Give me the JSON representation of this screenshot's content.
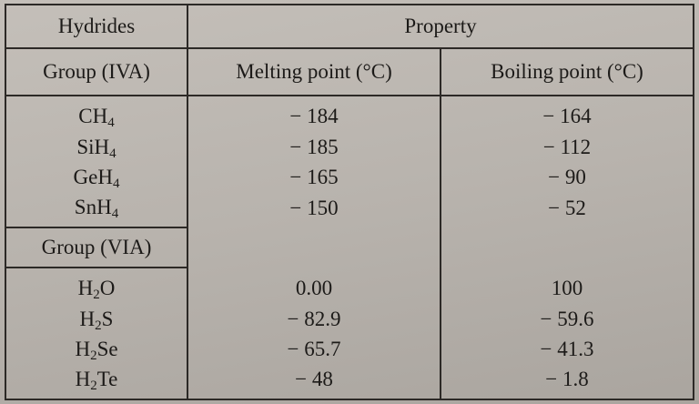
{
  "table": {
    "header": {
      "col1": "Hydrides",
      "property": "Property"
    },
    "subheader": {
      "group1": "Group (IVA)",
      "melting": "Melting point (°C)",
      "boiling": "Boiling point (°C)"
    },
    "group1_rows": [
      {
        "base": "CH",
        "sub": "4",
        "melting": "− 184",
        "boiling": "− 164"
      },
      {
        "base": "SiH",
        "sub": "4",
        "melting": "− 185",
        "boiling": "− 112"
      },
      {
        "base": "GeH",
        "sub": "4",
        "melting": "− 165",
        "boiling": "− 90"
      },
      {
        "base": "SnH",
        "sub": "4",
        "melting": "− 150",
        "boiling": "− 52"
      }
    ],
    "group2_label": "Group (VIA)",
    "group2_rows": [
      {
        "base": "H",
        "sub": "2",
        "tail": "O",
        "melting": "0.00",
        "boiling": "100"
      },
      {
        "base": "H",
        "sub": "2",
        "tail": "S",
        "melting": "− 82.9",
        "boiling": "− 59.6"
      },
      {
        "base": "H",
        "sub": "2",
        "tail": "Se",
        "melting": "− 65.7",
        "boiling": "− 41.3"
      },
      {
        "base": "H",
        "sub": "2",
        "tail": "Te",
        "melting": "− 48",
        "boiling": "− 1.8"
      }
    ]
  }
}
